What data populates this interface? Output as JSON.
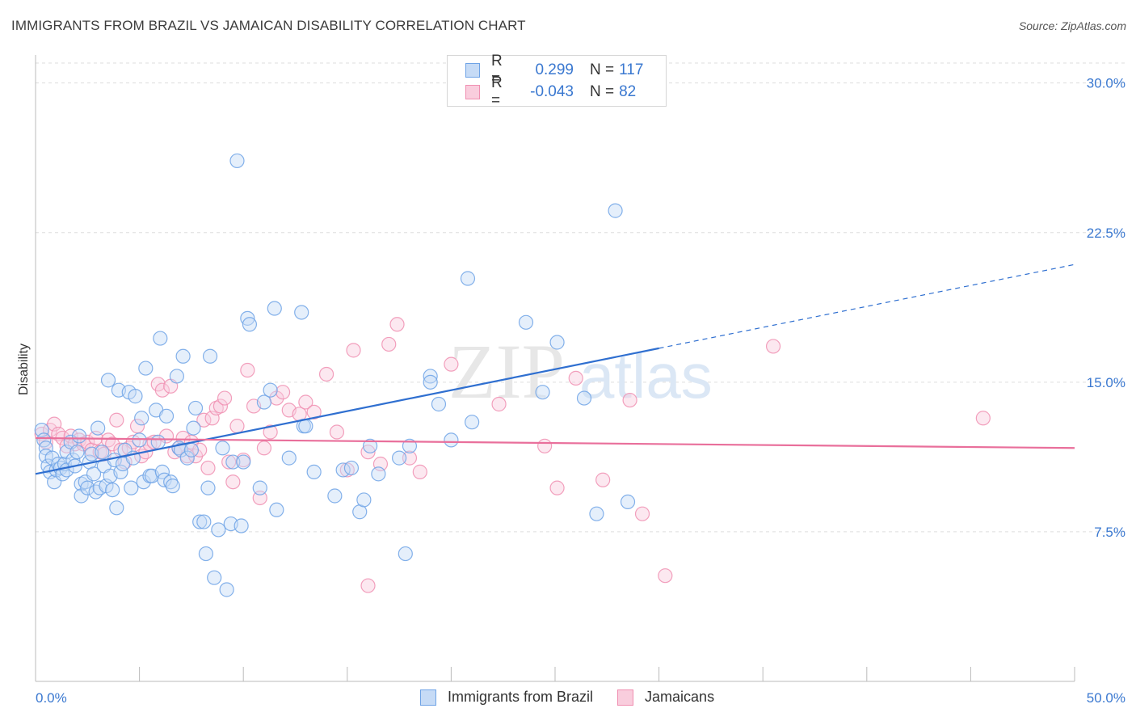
{
  "header": {
    "title": "IMMIGRANTS FROM BRAZIL VS JAMAICAN DISABILITY CORRELATION CHART",
    "source": "Source: ZipAtlas.com"
  },
  "watermark": {
    "part1": "ZIP",
    "part2": "atlas"
  },
  "legend_top": {
    "rows": [
      {
        "r_label": "R =",
        "r_value": "0.299",
        "n_label": "N =",
        "n_value": "117",
        "color": "#6fa3e6"
      },
      {
        "r_label": "R =",
        "r_value": "-0.043",
        "n_label": "N =",
        "n_value": "82",
        "color": "#f08fb1"
      }
    ]
  },
  "legend_bottom": {
    "items": [
      {
        "label": "Immigrants from Brazil",
        "color": "#6fa3e6"
      },
      {
        "label": "Jamaicans",
        "color": "#f08fb1"
      }
    ]
  },
  "chart_data": {
    "type": "scatter",
    "title": "IMMIGRANTS FROM BRAZIL VS JAMAICAN DISABILITY CORRELATION CHART",
    "xlabel": "",
    "ylabel": "Disability",
    "xlim": [
      0,
      50
    ],
    "ylim": [
      0,
      31
    ],
    "x_tick_labels": {
      "min": "0.0%",
      "max": "50.0%"
    },
    "y_ticks": [
      {
        "value": 7.5,
        "label": "7.5%"
      },
      {
        "value": 15.0,
        "label": "15.0%"
      },
      {
        "value": 22.5,
        "label": "22.5%"
      },
      {
        "value": 30.0,
        "label": "30.0%"
      }
    ],
    "series": [
      {
        "name": "Immigrants from Brazil",
        "color": "#6fa3e6",
        "line_color": "#2f6fd0",
        "trend": {
          "x0": 0,
          "y0": 10.4,
          "x1": 30,
          "y1": 16.7,
          "dash_to_x": 50,
          "dash_to_y": 20.9
        },
        "points": [
          [
            0.3,
            12.6
          ],
          [
            0.4,
            12.1
          ],
          [
            0.5,
            11.7
          ],
          [
            0.5,
            11.3
          ],
          [
            0.6,
            10.8
          ],
          [
            0.7,
            10.5
          ],
          [
            0.8,
            11.2
          ],
          [
            0.9,
            10.0
          ],
          [
            1.0,
            10.6
          ],
          [
            1.1,
            10.9
          ],
          [
            1.2,
            10.7
          ],
          [
            1.3,
            10.4
          ],
          [
            1.4,
            10.9
          ],
          [
            1.5,
            10.6
          ],
          [
            1.5,
            11.5
          ],
          [
            1.7,
            12.0
          ],
          [
            1.8,
            11.1
          ],
          [
            1.9,
            10.8
          ],
          [
            2.0,
            11.5
          ],
          [
            2.1,
            12.3
          ],
          [
            2.2,
            9.9
          ],
          [
            2.2,
            9.3
          ],
          [
            2.4,
            10.0
          ],
          [
            2.5,
            9.7
          ],
          [
            2.6,
            11.0
          ],
          [
            2.7,
            11.4
          ],
          [
            2.8,
            10.4
          ],
          [
            2.9,
            9.5
          ],
          [
            3.0,
            12.7
          ],
          [
            3.1,
            9.7
          ],
          [
            3.2,
            11.5
          ],
          [
            3.3,
            10.8
          ],
          [
            3.4,
            9.8
          ],
          [
            3.5,
            15.1
          ],
          [
            3.6,
            10.3
          ],
          [
            3.7,
            9.6
          ],
          [
            3.8,
            11.1
          ],
          [
            3.9,
            8.7
          ],
          [
            4.0,
            14.6
          ],
          [
            4.1,
            10.5
          ],
          [
            4.2,
            10.9
          ],
          [
            4.3,
            11.6
          ],
          [
            4.5,
            14.5
          ],
          [
            4.6,
            9.7
          ],
          [
            4.7,
            11.2
          ],
          [
            4.8,
            14.3
          ],
          [
            5.0,
            12.1
          ],
          [
            5.1,
            13.2
          ],
          [
            5.2,
            10.0
          ],
          [
            5.3,
            15.7
          ],
          [
            5.5,
            10.3
          ],
          [
            5.6,
            10.3
          ],
          [
            5.8,
            13.6
          ],
          [
            5.9,
            12.0
          ],
          [
            6.0,
            17.2
          ],
          [
            6.1,
            10.5
          ],
          [
            6.2,
            10.1
          ],
          [
            6.3,
            13.3
          ],
          [
            6.5,
            10.0
          ],
          [
            6.6,
            9.8
          ],
          [
            6.8,
            15.3
          ],
          [
            6.9,
            11.7
          ],
          [
            7.0,
            11.6
          ],
          [
            7.1,
            16.3
          ],
          [
            7.3,
            11.2
          ],
          [
            7.5,
            11.6
          ],
          [
            7.6,
            12.7
          ],
          [
            7.7,
            13.7
          ],
          [
            7.9,
            8.0
          ],
          [
            8.1,
            8.0
          ],
          [
            8.2,
            6.4
          ],
          [
            8.3,
            9.7
          ],
          [
            8.4,
            16.3
          ],
          [
            8.6,
            5.2
          ],
          [
            8.8,
            7.6
          ],
          [
            9.0,
            11.7
          ],
          [
            9.2,
            4.6
          ],
          [
            9.4,
            7.9
          ],
          [
            9.5,
            11.0
          ],
          [
            9.7,
            26.1
          ],
          [
            9.9,
            7.8
          ],
          [
            10.0,
            11.0
          ],
          [
            10.2,
            18.2
          ],
          [
            10.3,
            17.9
          ],
          [
            10.8,
            9.7
          ],
          [
            11.0,
            14.0
          ],
          [
            11.3,
            14.6
          ],
          [
            11.5,
            18.7
          ],
          [
            11.6,
            8.6
          ],
          [
            12.2,
            11.2
          ],
          [
            12.8,
            18.5
          ],
          [
            12.9,
            12.8
          ],
          [
            13.0,
            12.8
          ],
          [
            13.4,
            10.5
          ],
          [
            14.4,
            9.3
          ],
          [
            14.8,
            10.6
          ],
          [
            15.2,
            10.7
          ],
          [
            15.6,
            8.5
          ],
          [
            15.8,
            9.1
          ],
          [
            16.1,
            11.8
          ],
          [
            16.5,
            10.4
          ],
          [
            17.5,
            11.2
          ],
          [
            17.8,
            6.4
          ],
          [
            18.0,
            11.8
          ],
          [
            19.0,
            15.3
          ],
          [
            19.0,
            15.0
          ],
          [
            19.4,
            13.9
          ],
          [
            20.0,
            12.1
          ],
          [
            20.8,
            20.2
          ],
          [
            21.0,
            13.0
          ],
          [
            23.6,
            18.0
          ],
          [
            24.4,
            14.5
          ],
          [
            25.1,
            17.0
          ],
          [
            26.4,
            14.2
          ],
          [
            27.0,
            8.4
          ],
          [
            27.9,
            23.6
          ],
          [
            28.5,
            9.0
          ]
        ]
      },
      {
        "name": "Jamaicans",
        "color": "#f08fb1",
        "line_color": "#e96f9b",
        "trend": {
          "x0": 0,
          "y0": 12.2,
          "x1": 50,
          "y1": 11.7
        },
        "points": [
          [
            0.3,
            12.4
          ],
          [
            0.5,
            12.0
          ],
          [
            0.7,
            12.6
          ],
          [
            0.9,
            12.9
          ],
          [
            1.1,
            12.4
          ],
          [
            1.3,
            12.2
          ],
          [
            1.5,
            11.8
          ],
          [
            1.7,
            12.3
          ],
          [
            1.9,
            11.9
          ],
          [
            2.1,
            12.1
          ],
          [
            2.3,
            11.9
          ],
          [
            2.5,
            12.0
          ],
          [
            2.7,
            11.6
          ],
          [
            2.9,
            12.2
          ],
          [
            3.1,
            11.5
          ],
          [
            3.3,
            11.4
          ],
          [
            3.5,
            12.1
          ],
          [
            3.7,
            11.9
          ],
          [
            3.9,
            13.1
          ],
          [
            4.1,
            11.6
          ],
          [
            4.3,
            11.0
          ],
          [
            4.5,
            11.7
          ],
          [
            4.7,
            12.0
          ],
          [
            4.9,
            12.8
          ],
          [
            5.1,
            11.3
          ],
          [
            5.3,
            11.5
          ],
          [
            5.5,
            11.9
          ],
          [
            5.7,
            12.0
          ],
          [
            5.9,
            14.9
          ],
          [
            6.1,
            14.6
          ],
          [
            6.3,
            12.3
          ],
          [
            6.5,
            14.8
          ],
          [
            6.7,
            11.5
          ],
          [
            6.9,
            11.7
          ],
          [
            7.1,
            12.2
          ],
          [
            7.3,
            11.3
          ],
          [
            7.5,
            12.0
          ],
          [
            7.7,
            11.3
          ],
          [
            7.9,
            11.6
          ],
          [
            8.1,
            13.1
          ],
          [
            8.3,
            10.7
          ],
          [
            8.5,
            13.2
          ],
          [
            8.7,
            13.7
          ],
          [
            8.9,
            13.8
          ],
          [
            9.1,
            14.2
          ],
          [
            9.3,
            11.0
          ],
          [
            9.5,
            10.0
          ],
          [
            9.7,
            12.8
          ],
          [
            10.0,
            11.1
          ],
          [
            10.2,
            15.6
          ],
          [
            10.5,
            13.8
          ],
          [
            10.8,
            9.2
          ],
          [
            11.0,
            11.7
          ],
          [
            11.3,
            12.5
          ],
          [
            11.6,
            14.2
          ],
          [
            11.9,
            14.5
          ],
          [
            12.2,
            13.6
          ],
          [
            12.7,
            13.4
          ],
          [
            13.0,
            14.0
          ],
          [
            13.4,
            13.5
          ],
          [
            14.0,
            15.4
          ],
          [
            14.5,
            12.5
          ],
          [
            15.0,
            10.6
          ],
          [
            15.3,
            16.6
          ],
          [
            16.0,
            11.5
          ],
          [
            16.6,
            10.9
          ],
          [
            17.0,
            16.9
          ],
          [
            17.4,
            17.9
          ],
          [
            18.0,
            11.2
          ],
          [
            18.5,
            10.5
          ],
          [
            20.0,
            15.9
          ],
          [
            22.3,
            13.9
          ],
          [
            24.5,
            11.8
          ],
          [
            25.1,
            9.7
          ],
          [
            26.0,
            15.2
          ],
          [
            27.3,
            10.1
          ],
          [
            28.6,
            14.1
          ],
          [
            29.2,
            8.4
          ],
          [
            30.3,
            5.3
          ],
          [
            35.5,
            16.8
          ],
          [
            45.6,
            13.2
          ],
          [
            16.0,
            4.8
          ]
        ]
      }
    ]
  }
}
